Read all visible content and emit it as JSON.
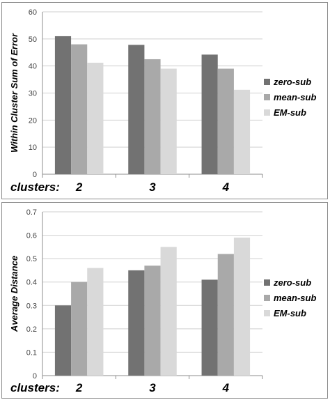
{
  "chart_data": [
    {
      "type": "bar",
      "categories_prefix": "clusters:",
      "categories": [
        "2",
        "3",
        "4"
      ],
      "series": [
        {
          "name": "zero-sub",
          "values": [
            51,
            47.8,
            44.2
          ],
          "color": "#727272"
        },
        {
          "name": "mean-sub",
          "values": [
            48,
            42.5,
            39
          ],
          "color": "#a9a9a9"
        },
        {
          "name": "EM-sub",
          "values": [
            41.2,
            39,
            31.2
          ],
          "color": "#d9d9d9"
        }
      ],
      "ylabel": "Within Cluster Sum of Error",
      "ylim": [
        0,
        60
      ],
      "yticks": [
        "0",
        "10",
        "20",
        "30",
        "40",
        "50",
        "60"
      ],
      "grid": true,
      "legend": "right"
    },
    {
      "type": "bar",
      "categories_prefix": "clusters:",
      "categories": [
        "2",
        "3",
        "4"
      ],
      "series": [
        {
          "name": "zero-sub",
          "values": [
            0.3,
            0.45,
            0.41
          ],
          "color": "#727272"
        },
        {
          "name": "mean-sub",
          "values": [
            0.4,
            0.47,
            0.52
          ],
          "color": "#a9a9a9"
        },
        {
          "name": "EM-sub",
          "values": [
            0.46,
            0.55,
            0.59
          ],
          "color": "#d9d9d9"
        }
      ],
      "ylabel": "Average Distance",
      "ylim": [
        0,
        0.7
      ],
      "yticks": [
        "0",
        "0.1",
        "0.2",
        "0.3",
        "0.4",
        "0.5",
        "0.6",
        "0.7"
      ],
      "grid": true,
      "legend": "right"
    }
  ]
}
